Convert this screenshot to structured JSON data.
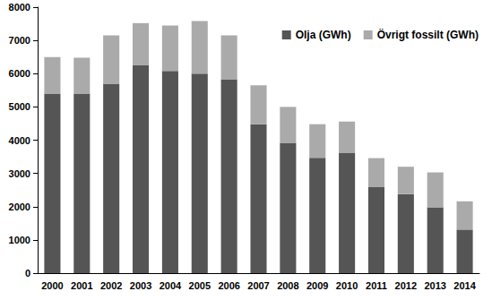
{
  "chart_data": {
    "type": "bar",
    "stacked": true,
    "grid": false,
    "legend": "top-right",
    "categories": [
      "2000",
      "2001",
      "2002",
      "2003",
      "2004",
      "2005",
      "2006",
      "2007",
      "2008",
      "2009",
      "2010",
      "2011",
      "2012",
      "2013",
      "2014"
    ],
    "series": [
      {
        "name": "Olja (GWh)",
        "color": "#555555",
        "values": [
          5400,
          5400,
          5700,
          6250,
          6080,
          6000,
          5830,
          4480,
          3920,
          3470,
          3620,
          2600,
          2380,
          1980,
          1310
        ]
      },
      {
        "name": "Övrigt fossilt (GWh)",
        "color": "#aaaaaa",
        "values": [
          1100,
          1080,
          1450,
          1270,
          1370,
          1580,
          1320,
          1170,
          1080,
          1010,
          940,
          860,
          820,
          1050,
          850
        ]
      }
    ],
    "ylim": [
      0,
      8000
    ],
    "yticks": [
      0,
      1000,
      2000,
      3000,
      4000,
      5000,
      6000,
      7000,
      8000
    ]
  }
}
